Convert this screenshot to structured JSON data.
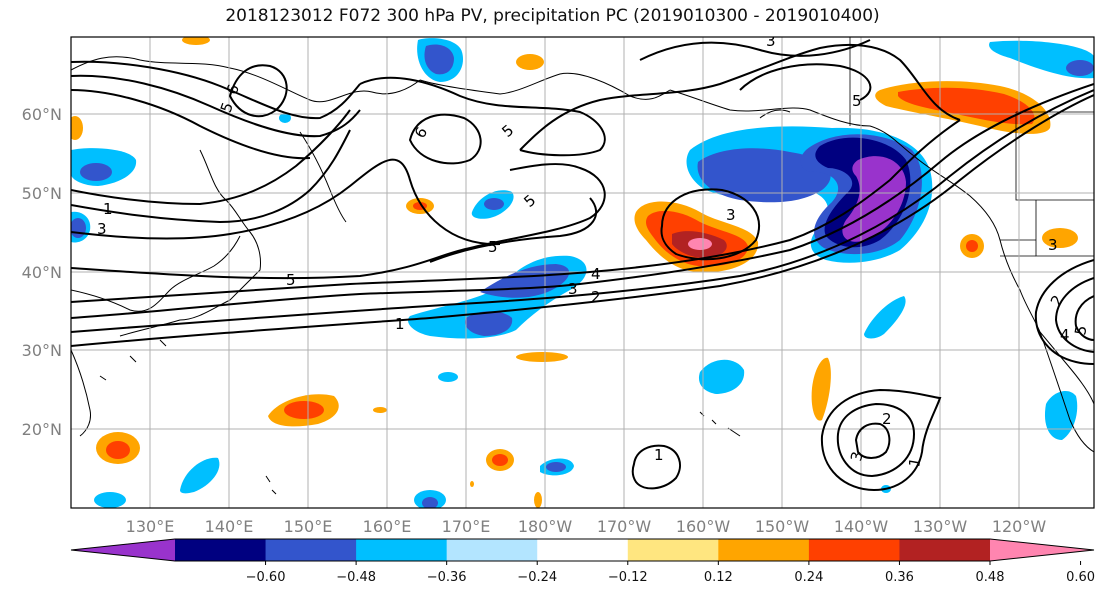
{
  "title": "2018123012 F072 300 hPa PV, precipitation PC (2019010300 - 2019010400)",
  "lat_labels": [
    "60°N",
    "50°N",
    "40°N",
    "30°N",
    "20°N"
  ],
  "lon_labels": [
    "130°E",
    "140°E",
    "150°E",
    "160°E",
    "170°E",
    "180°W",
    "170°W",
    "160°W",
    "150°W",
    "140°W",
    "130°W",
    "120°W"
  ],
  "colorbar": {
    "ticks": [
      "−0.60",
      "−0.48",
      "−0.36",
      "−0.24",
      "−0.12",
      "0.12",
      "0.24",
      "0.36",
      "0.48",
      "0.60"
    ],
    "colors": [
      "#9933cc",
      "#000080",
      "#3355cc",
      "#00bfff",
      "#b3e5ff",
      "#ffffff",
      "#ffe680",
      "#ffa500",
      "#ff4000",
      "#b22222",
      "#ff85b0"
    ]
  },
  "contour_labels": [
    "6",
    "5",
    "6",
    "5",
    "3",
    "5",
    "1",
    "3",
    "5",
    "5",
    "3",
    "4",
    "3",
    "2",
    "1",
    "5",
    "1",
    "2",
    "3",
    "1",
    "2",
    "5",
    "3",
    "4"
  ]
}
